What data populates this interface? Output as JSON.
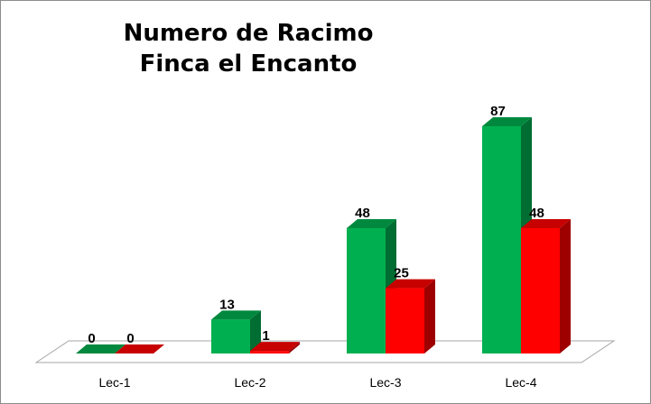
{
  "chart_data": {
    "type": "bar",
    "title_lines": [
      "Numero de Racimo",
      "Finca el Encanto"
    ],
    "categories": [
      "Lec-1",
      "Lec-2",
      "Lec-3",
      "Lec-4"
    ],
    "series": [
      {
        "values": [
          0,
          13,
          48,
          87
        ],
        "color": "#00b050"
      },
      {
        "values": [
          0,
          1,
          25,
          48
        ],
        "color": "#ff0000"
      }
    ],
    "ylim": [
      0,
      87
    ],
    "grid": false,
    "legend": "none",
    "data_labels": true,
    "style": "3d-column"
  }
}
